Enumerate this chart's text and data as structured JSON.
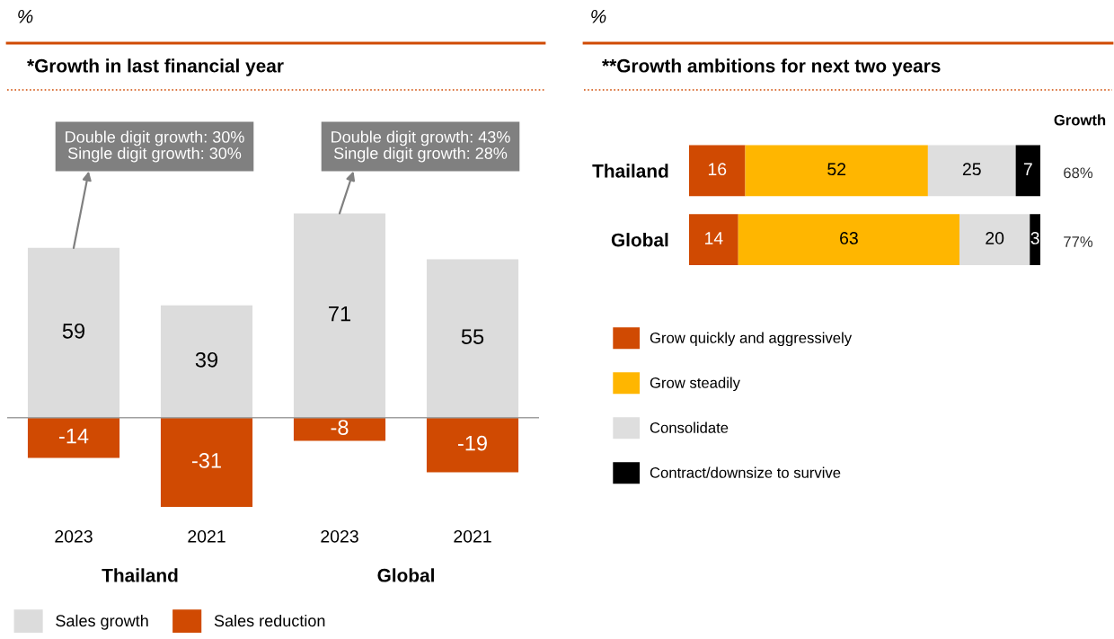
{
  "chart_data": [
    {
      "type": "bar",
      "stacked": true,
      "title": "*Growth in last financial year",
      "categories": [
        "2023",
        "2021",
        "2023",
        "2021"
      ],
      "data_labels": true,
      "legend": "bottom",
      "series": [
        {
          "name": "Sales growth",
          "color": "#dcdcdc",
          "values": [
            59,
            39,
            71,
            55
          ]
        },
        {
          "name": "Sales reduction",
          "color": "#d04a02",
          "values": [
            -14,
            -31,
            -8,
            -19
          ]
        }
      ],
      "annotations": [
        "Double digit growth: 30%\nSingle digit growth: 30%",
        "Double digit growth: 43%\nSingle digit growth: 28%",
        "Thailand",
        "Global",
        "%"
      ]
    },
    {
      "type": "bar",
      "orientation": "horizontal",
      "stacked": true,
      "title": "**Growth ambitions for next two years",
      "ylabel": "%",
      "categories": [
        "Thailand",
        "Global"
      ],
      "data_labels": true,
      "legend": "bottom left",
      "series": [
        {
          "name": "Grow quickly and aggressively",
          "color": "#d04a02",
          "values": [
            16,
            14
          ]
        },
        {
          "name": "Grow steadily",
          "color": "#ffb600",
          "values": [
            52,
            63
          ]
        },
        {
          "name": "Consolidate",
          "color": "#dedede",
          "values": [
            25,
            20
          ]
        },
        {
          "name": "Contract/downsize to survive",
          "color": "#000000",
          "values": [
            7,
            3
          ]
        }
      ],
      "annotations": [
        "Growth",
        "68%",
        "77%"
      ]
    }
  ]
}
